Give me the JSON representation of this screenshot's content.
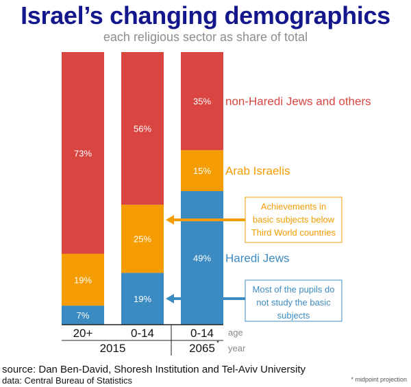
{
  "title": "Israel’s changing demographics",
  "subtitle": "each religious sector as share of total",
  "colors": {
    "non_haredi": "#d94540",
    "arab": "#f59c00",
    "haredi": "#3b8bc2",
    "title": "#14168c",
    "axis_text": "#888888",
    "note_orange": "#f59c00",
    "note_blue": "#3b8bc2"
  },
  "chart_data": {
    "type": "bar",
    "stacked": true,
    "ylim": [
      0,
      100
    ],
    "categories": [
      "20+",
      "0-14",
      "0-14"
    ],
    "groups": [
      {
        "label": "2015",
        "bars": [
          0,
          1
        ],
        "asterisk": ""
      },
      {
        "label": "2065",
        "bars": [
          2
        ],
        "asterisk": "*"
      }
    ],
    "series": [
      {
        "name": "Haredi Jews",
        "key": "haredi",
        "values": [
          7,
          19,
          49
        ],
        "labels": [
          "7%",
          "19%",
          "49%"
        ]
      },
      {
        "name": "Arab Israelis",
        "key": "arab",
        "values": [
          19,
          25,
          15
        ],
        "labels": [
          "19%",
          "25%",
          "15%"
        ]
      },
      {
        "name": "non-Haredi Jews and others",
        "key": "non_haredi",
        "values": [
          73,
          56,
          35
        ],
        "labels": [
          "73%",
          "56%",
          "35%"
        ]
      }
    ],
    "axis_tags": {
      "age": "age",
      "year": "year"
    }
  },
  "annotations": {
    "arab_note": [
      "Achievements in",
      "basic subjects below",
      "Third World countries"
    ],
    "haredi_note": [
      "Most of the pupils do",
      "not study the basic",
      "subjects"
    ]
  },
  "source": "source: Dan Ben-David, Shoresh Institution and Tel-Aviv University",
  "data_credit": "data: Central Bureau of Statistics",
  "footnote": "* midpoint projection"
}
